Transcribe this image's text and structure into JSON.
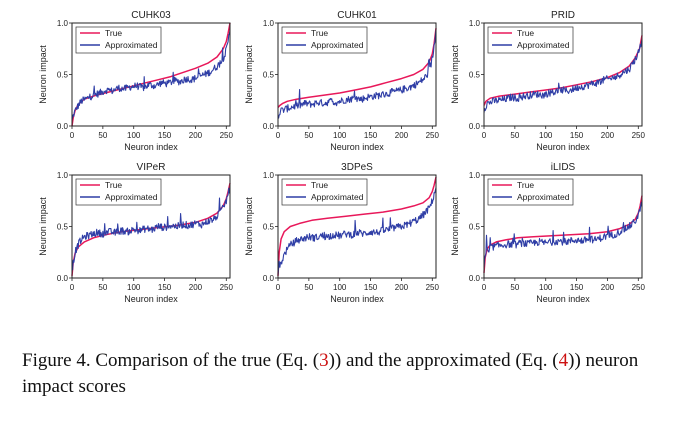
{
  "caption": {
    "prefix": "Figure 4. Comparison of the true (Eq. (",
    "ref1": "3",
    "middle": ")) and the approximated (Eq. (",
    "ref2": "4",
    "suffix": ")) neuron impact scores"
  },
  "colors": {
    "true": "#e8185a",
    "approximated": "#2f3ea6"
  },
  "chart_data": [
    {
      "type": "line",
      "title": "CUHK03",
      "xlabel": "Neuron index",
      "ylabel": "Neuron impact",
      "xlim": [
        0,
        256
      ],
      "ylim": [
        0.0,
        1.0
      ],
      "xticks": [
        "0",
        "50",
        "100",
        "150",
        "200",
        "250"
      ],
      "yticks": [
        "0.0",
        "0.5",
        "1.0"
      ],
      "legend": "top-left",
      "grid": false,
      "series": [
        {
          "name": "True",
          "x": [
            0,
            2,
            5,
            10,
            20,
            40,
            60,
            80,
            100,
            120,
            140,
            160,
            180,
            200,
            220,
            235,
            245,
            250,
            253,
            256
          ],
          "values": [
            0.0,
            0.08,
            0.15,
            0.21,
            0.26,
            0.3,
            0.33,
            0.36,
            0.39,
            0.42,
            0.45,
            0.48,
            0.52,
            0.56,
            0.61,
            0.67,
            0.75,
            0.82,
            0.9,
            1.0
          ]
        },
        {
          "name": "Approximated",
          "x": [
            0,
            3,
            8,
            15,
            25,
            35,
            45,
            55,
            65,
            75,
            85,
            95,
            105,
            115,
            125,
            135,
            145,
            155,
            165,
            175,
            185,
            195,
            205,
            215,
            225,
            235,
            242,
            248,
            252,
            256
          ],
          "values": [
            0.05,
            0.12,
            0.18,
            0.24,
            0.27,
            0.3,
            0.32,
            0.35,
            0.34,
            0.37,
            0.36,
            0.38,
            0.39,
            0.37,
            0.4,
            0.39,
            0.42,
            0.41,
            0.44,
            0.43,
            0.46,
            0.45,
            0.48,
            0.5,
            0.53,
            0.58,
            0.62,
            0.7,
            0.78,
            0.95
          ]
        }
      ]
    },
    {
      "type": "line",
      "title": "CUHK01",
      "xlabel": "Neuron index",
      "ylabel": "Neuron impact",
      "xlim": [
        0,
        256
      ],
      "ylim": [
        0.0,
        1.0
      ],
      "xticks": [
        "0",
        "50",
        "100",
        "150",
        "200",
        "250"
      ],
      "yticks": [
        "0.0",
        "0.5",
        "1.0"
      ],
      "legend": "top-left",
      "grid": false,
      "series": [
        {
          "name": "True",
          "x": [
            0,
            3,
            8,
            15,
            30,
            50,
            75,
            100,
            125,
            150,
            175,
            200,
            220,
            235,
            245,
            250,
            253,
            256
          ],
          "values": [
            0.18,
            0.2,
            0.22,
            0.24,
            0.26,
            0.28,
            0.3,
            0.32,
            0.35,
            0.38,
            0.42,
            0.46,
            0.5,
            0.55,
            0.62,
            0.7,
            0.8,
            0.95
          ]
        },
        {
          "name": "Approximated",
          "x": [
            0,
            5,
            15,
            25,
            35,
            45,
            55,
            65,
            75,
            85,
            95,
            105,
            115,
            125,
            135,
            145,
            155,
            165,
            175,
            185,
            195,
            205,
            215,
            225,
            235,
            242,
            248,
            252,
            256
          ],
          "values": [
            0.1,
            0.15,
            0.17,
            0.19,
            0.2,
            0.22,
            0.21,
            0.23,
            0.22,
            0.24,
            0.23,
            0.25,
            0.26,
            0.27,
            0.26,
            0.28,
            0.29,
            0.3,
            0.31,
            0.33,
            0.34,
            0.36,
            0.38,
            0.41,
            0.45,
            0.5,
            0.6,
            0.72,
            0.95
          ]
        }
      ]
    },
    {
      "type": "line",
      "title": "PRID",
      "xlabel": "Neuron index",
      "ylabel": "Neuron impact",
      "xlim": [
        0,
        256
      ],
      "ylim": [
        0.0,
        1.0
      ],
      "xticks": [
        "0",
        "50",
        "100",
        "150",
        "200",
        "250"
      ],
      "yticks": [
        "0.0",
        "0.5",
        "1.0"
      ],
      "legend": "top-left",
      "grid": false,
      "series": [
        {
          "name": "True",
          "x": [
            0,
            3,
            10,
            25,
            50,
            75,
            100,
            125,
            150,
            175,
            200,
            220,
            235,
            245,
            252,
            256
          ],
          "values": [
            0.2,
            0.24,
            0.27,
            0.29,
            0.31,
            0.33,
            0.35,
            0.37,
            0.4,
            0.43,
            0.47,
            0.52,
            0.58,
            0.66,
            0.75,
            0.88
          ]
        },
        {
          "name": "Approximated",
          "x": [
            0,
            5,
            15,
            25,
            35,
            45,
            55,
            65,
            75,
            85,
            95,
            105,
            115,
            125,
            135,
            145,
            155,
            165,
            175,
            185,
            195,
            205,
            215,
            225,
            235,
            242,
            248,
            252,
            256
          ],
          "values": [
            0.16,
            0.22,
            0.24,
            0.25,
            0.26,
            0.28,
            0.27,
            0.29,
            0.3,
            0.31,
            0.3,
            0.32,
            0.33,
            0.35,
            0.34,
            0.36,
            0.38,
            0.39,
            0.41,
            0.42,
            0.45,
            0.46,
            0.48,
            0.52,
            0.55,
            0.62,
            0.68,
            0.75,
            0.85
          ]
        }
      ]
    },
    {
      "type": "line",
      "title": "VIPeR",
      "xlabel": "Neuron index",
      "ylabel": "Neuron impact",
      "xlim": [
        0,
        256
      ],
      "ylim": [
        0.0,
        1.0
      ],
      "xticks": [
        "0",
        "50",
        "100",
        "150",
        "200",
        "250"
      ],
      "yticks": [
        "0.0",
        "0.5",
        "1.0"
      ],
      "legend": "top-left",
      "grid": false,
      "series": [
        {
          "name": "True",
          "x": [
            0,
            2,
            5,
            10,
            20,
            35,
            55,
            80,
            110,
            140,
            170,
            200,
            220,
            235,
            245,
            250,
            253,
            256
          ],
          "values": [
            0.02,
            0.15,
            0.24,
            0.3,
            0.35,
            0.39,
            0.42,
            0.45,
            0.47,
            0.49,
            0.51,
            0.54,
            0.58,
            0.63,
            0.7,
            0.77,
            0.84,
            0.92
          ]
        },
        {
          "name": "Approximated",
          "x": [
            0,
            5,
            12,
            20,
            30,
            40,
            50,
            60,
            70,
            80,
            90,
            100,
            110,
            120,
            130,
            140,
            150,
            160,
            170,
            180,
            190,
            200,
            210,
            220,
            230,
            238,
            245,
            250,
            256
          ],
          "values": [
            0.08,
            0.25,
            0.35,
            0.4,
            0.42,
            0.44,
            0.43,
            0.45,
            0.44,
            0.46,
            0.45,
            0.47,
            0.46,
            0.48,
            0.47,
            0.5,
            0.49,
            0.51,
            0.5,
            0.52,
            0.51,
            0.53,
            0.52,
            0.55,
            0.57,
            0.62,
            0.68,
            0.75,
            0.88
          ]
        }
      ]
    },
    {
      "type": "line",
      "title": "3DPeS",
      "xlabel": "Neuron index",
      "ylabel": "Neuron impact",
      "xlim": [
        0,
        256
      ],
      "ylim": [
        0.0,
        1.0
      ],
      "xticks": [
        "0",
        "50",
        "100",
        "150",
        "200",
        "250"
      ],
      "yticks": [
        "0.0",
        "0.5",
        "1.0"
      ],
      "legend": "top-left",
      "grid": false,
      "series": [
        {
          "name": "True",
          "x": [
            0,
            2,
            5,
            10,
            20,
            35,
            55,
            80,
            110,
            140,
            170,
            200,
            220,
            235,
            245,
            250,
            253,
            256
          ],
          "values": [
            0.02,
            0.25,
            0.38,
            0.45,
            0.5,
            0.53,
            0.56,
            0.58,
            0.6,
            0.62,
            0.64,
            0.67,
            0.7,
            0.73,
            0.78,
            0.84,
            0.9,
            0.98
          ]
        },
        {
          "name": "Approximated",
          "x": [
            0,
            5,
            12,
            20,
            30,
            40,
            50,
            60,
            70,
            80,
            90,
            100,
            110,
            120,
            130,
            140,
            150,
            160,
            170,
            180,
            190,
            200,
            210,
            220,
            230,
            238,
            245,
            250,
            256
          ],
          "values": [
            0.05,
            0.15,
            0.25,
            0.32,
            0.36,
            0.38,
            0.4,
            0.39,
            0.41,
            0.4,
            0.42,
            0.41,
            0.43,
            0.42,
            0.44,
            0.43,
            0.45,
            0.44,
            0.46,
            0.47,
            0.49,
            0.5,
            0.52,
            0.55,
            0.58,
            0.63,
            0.68,
            0.75,
            0.88
          ]
        }
      ]
    },
    {
      "type": "line",
      "title": "iLIDS",
      "xlabel": "Neuron index",
      "ylabel": "Neuron impact",
      "xlim": [
        0,
        256
      ],
      "ylim": [
        0.0,
        1.0
      ],
      "xticks": [
        "0",
        "50",
        "100",
        "150",
        "200",
        "250"
      ],
      "yticks": [
        "0.0",
        "0.5",
        "1.0"
      ],
      "legend": "top-left",
      "grid": false,
      "series": [
        {
          "name": "True",
          "x": [
            0,
            2,
            5,
            10,
            20,
            35,
            55,
            80,
            110,
            140,
            170,
            200,
            220,
            235,
            245,
            250,
            253,
            256
          ],
          "values": [
            0.05,
            0.2,
            0.28,
            0.32,
            0.35,
            0.37,
            0.39,
            0.4,
            0.41,
            0.42,
            0.43,
            0.45,
            0.48,
            0.52,
            0.57,
            0.63,
            0.7,
            0.8
          ]
        },
        {
          "name": "Approximated",
          "x": [
            0,
            4,
            8,
            12,
            20,
            30,
            40,
            50,
            60,
            70,
            80,
            90,
            100,
            110,
            120,
            130,
            140,
            150,
            160,
            170,
            180,
            190,
            200,
            210,
            220,
            230,
            240,
            248,
            256
          ],
          "values": [
            0.12,
            0.28,
            0.25,
            0.3,
            0.31,
            0.32,
            0.33,
            0.32,
            0.34,
            0.33,
            0.34,
            0.35,
            0.34,
            0.35,
            0.36,
            0.35,
            0.36,
            0.37,
            0.36,
            0.38,
            0.37,
            0.39,
            0.41,
            0.42,
            0.45,
            0.48,
            0.52,
            0.58,
            0.72
          ]
        }
      ]
    }
  ]
}
